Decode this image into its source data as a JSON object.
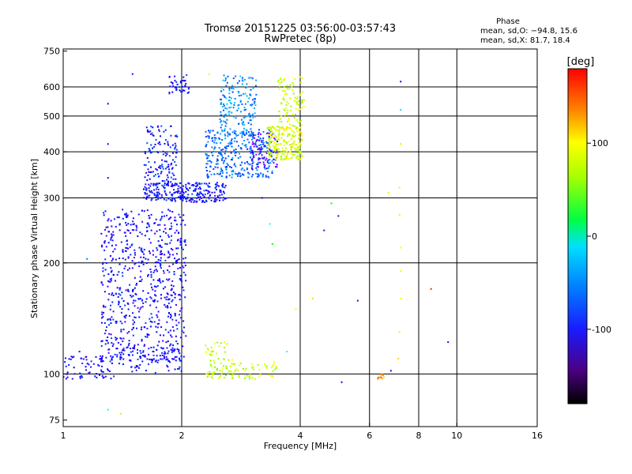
{
  "chart_data": {
    "type": "scatter",
    "title": "Tromsø 20151225 03:56:00-03:57:43",
    "subtitle": "RwPretec (8p)",
    "xlabel": "Frequency [MHz]",
    "ylabel": "Stationary phase Virtual Height [km]",
    "x_scale": "log",
    "y_scale": "log",
    "xlim": [
      1,
      16
    ],
    "ylim": [
      72,
      760
    ],
    "x_ticks": [
      1,
      2,
      4,
      6,
      8,
      10,
      16
    ],
    "x_tick_labels": [
      "1",
      "2",
      "4",
      "6",
      "8",
      "10",
      "16"
    ],
    "y_ticks": [
      75,
      100,
      200,
      300,
      400,
      500,
      600,
      750
    ],
    "y_tick_labels": [
      "75",
      "100",
      "200",
      "300",
      "400",
      "500",
      "600",
      "750"
    ],
    "x_grid": [
      2,
      4,
      6,
      8,
      10
    ],
    "y_grid": [
      100,
      200,
      300,
      400,
      500,
      600
    ],
    "phase_box": {
      "heading": "Phase",
      "line_o": "mean, sd,O: −94.8, 15.6",
      "line_x": "mean, sd,X:  81.7, 18.4"
    },
    "colorbar": {
      "label": "[deg]",
      "range": [
        -180,
        180
      ],
      "ticks": [
        100,
        0,
        -100
      ],
      "tick_labels": [
        "100",
        "0",
        "-100"
      ]
    },
    "clusters": [
      {
        "x": [
          1.25,
          2.05
        ],
        "y": [
          108,
          280
        ],
        "phase": -105,
        "count": 700
      },
      {
        "x": [
          1.0,
          1.35
        ],
        "y": [
          97,
          112
        ],
        "phase": -108,
        "count": 70
      },
      {
        "x": [
          1.35,
          2.0
        ],
        "y": [
          100,
          118
        ],
        "phase": -100,
        "count": 80
      },
      {
        "x": [
          1.6,
          2.6
        ],
        "y": [
          292,
          330
        ],
        "phase": -102,
        "count": 260
      },
      {
        "x": [
          1.6,
          1.95
        ],
        "y": [
          330,
          470
        ],
        "phase": -98,
        "count": 130
      },
      {
        "x": [
          1.85,
          2.1
        ],
        "y": [
          570,
          650
        ],
        "phase": -100,
        "count": 40
      },
      {
        "x": [
          2.3,
          3.4
        ],
        "y": [
          340,
          460
        ],
        "phase": -75,
        "count": 320
      },
      {
        "x": [
          2.5,
          3.1
        ],
        "y": [
          440,
          650
        ],
        "phase": -65,
        "count": 170
      },
      {
        "x": [
          3.0,
          3.5
        ],
        "y": [
          360,
          450
        ],
        "phase": -125,
        "count": 70
      },
      {
        "x": [
          3.3,
          4.05
        ],
        "y": [
          380,
          470
        ],
        "phase": 100,
        "count": 220
      },
      {
        "x": [
          3.5,
          4.1
        ],
        "y": [
          470,
          640
        ],
        "phase": 95,
        "count": 90
      },
      {
        "x": [
          2.3,
          3.5
        ],
        "y": [
          97,
          108
        ],
        "phase": 92,
        "count": 90
      },
      {
        "x": [
          2.3,
          2.7
        ],
        "y": [
          108,
          122
        ],
        "phase": 95,
        "count": 30
      },
      {
        "x": [
          6.3,
          6.6
        ],
        "y": [
          97,
          100
        ],
        "phase": 140,
        "count": 12
      }
    ],
    "scattered_points": [
      {
        "x": 7.2,
        "y": 620,
        "phase": -100
      },
      {
        "x": 7.2,
        "y": 520,
        "phase": -40
      },
      {
        "x": 7.2,
        "y": 420,
        "phase": 90
      },
      {
        "x": 7.15,
        "y": 320,
        "phase": 100
      },
      {
        "x": 7.15,
        "y": 270,
        "phase": 95
      },
      {
        "x": 7.2,
        "y": 220,
        "phase": 110
      },
      {
        "x": 7.2,
        "y": 190,
        "phase": 100
      },
      {
        "x": 7.2,
        "y": 160,
        "phase": 110
      },
      {
        "x": 7.15,
        "y": 130,
        "phase": 100
      },
      {
        "x": 7.1,
        "y": 110,
        "phase": 120
      },
      {
        "x": 6.8,
        "y": 102,
        "phase": -110
      },
      {
        "x": 8.6,
        "y": 170,
        "phase": 170
      },
      {
        "x": 9.5,
        "y": 122,
        "phase": -110
      },
      {
        "x": 5.6,
        "y": 158,
        "phase": -100
      },
      {
        "x": 5.1,
        "y": 95,
        "phase": -110
      },
      {
        "x": 5.0,
        "y": 268,
        "phase": -110
      },
      {
        "x": 4.6,
        "y": 245,
        "phase": -110
      },
      {
        "x": 4.3,
        "y": 160,
        "phase": 120
      },
      {
        "x": 4.8,
        "y": 290,
        "phase": 40
      },
      {
        "x": 3.4,
        "y": 225,
        "phase": 40
      },
      {
        "x": 3.35,
        "y": 255,
        "phase": -30
      },
      {
        "x": 3.2,
        "y": 300,
        "phase": -110
      },
      {
        "x": 3.7,
        "y": 115,
        "phase": -30
      },
      {
        "x": 3.9,
        "y": 150,
        "phase": 110
      },
      {
        "x": 6.7,
        "y": 310,
        "phase": 100
      },
      {
        "x": 1.3,
        "y": 540,
        "phase": -100
      },
      {
        "x": 1.3,
        "y": 420,
        "phase": -100
      },
      {
        "x": 1.3,
        "y": 340,
        "phase": -100
      },
      {
        "x": 1.15,
        "y": 205,
        "phase": -70
      },
      {
        "x": 1.3,
        "y": 80,
        "phase": -20
      },
      {
        "x": 1.4,
        "y": 78,
        "phase": 120
      },
      {
        "x": 1.1,
        "y": 115,
        "phase": -110
      },
      {
        "x": 1.25,
        "y": 240,
        "phase": -100
      },
      {
        "x": 2.35,
        "y": 650,
        "phase": 100
      },
      {
        "x": 1.5,
        "y": 650,
        "phase": -110
      }
    ]
  }
}
